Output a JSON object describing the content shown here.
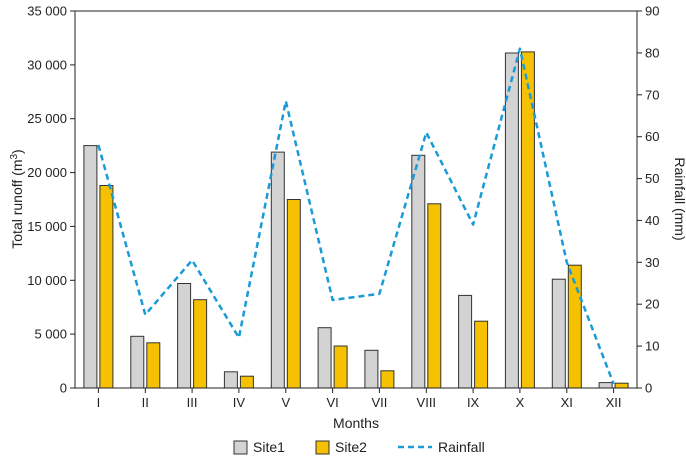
{
  "chart_data": {
    "type": "bar",
    "categories": [
      "I",
      "II",
      "III",
      "IV",
      "V",
      "VI",
      "VII",
      "VIII",
      "IX",
      "X",
      "XI",
      "XII"
    ],
    "series": [
      {
        "name": "Site1",
        "kind": "bar",
        "axis": "left",
        "color": "#d3d3d3",
        "values": [
          22500,
          4800,
          9700,
          1500,
          21900,
          5600,
          3500,
          21600,
          8600,
          31100,
          10100,
          500
        ]
      },
      {
        "name": "Site2",
        "kind": "bar",
        "axis": "left",
        "color": "#f5c100",
        "values": [
          18800,
          4200,
          8200,
          1100,
          17500,
          3900,
          1600,
          17100,
          6200,
          31200,
          11400,
          450
        ]
      },
      {
        "name": "Rainfall",
        "kind": "line",
        "axis": "right",
        "color": "#1a9bd7",
        "line_style": "dashed",
        "values": [
          58,
          17.5,
          30.5,
          12,
          68.5,
          21,
          22.5,
          61,
          39,
          81,
          30,
          1
        ]
      }
    ],
    "xlabel": "Months",
    "ylabel": "Total runoff (m³)",
    "ylabel_right": "Rainfall (mm)",
    "ylim": [
      0,
      35000
    ],
    "ylim_right": [
      0,
      90
    ],
    "yticks": [
      0,
      5000,
      10000,
      15000,
      20000,
      25000,
      30000,
      35000
    ],
    "ytick_labels": [
      "0",
      "5 000",
      "10 000",
      "15 000",
      "20 000",
      "25 000",
      "30 000",
      "35 000"
    ],
    "yticks_right": [
      0,
      10,
      20,
      30,
      40,
      50,
      60,
      70,
      80,
      90
    ],
    "ytick_labels_right": [
      "0",
      "10",
      "20",
      "30",
      "40",
      "50",
      "60",
      "70",
      "80",
      "90"
    ],
    "grid": false,
    "legend": {
      "position": "bottom",
      "entries": [
        "Site1",
        "Site2",
        "Rainfall"
      ]
    }
  }
}
